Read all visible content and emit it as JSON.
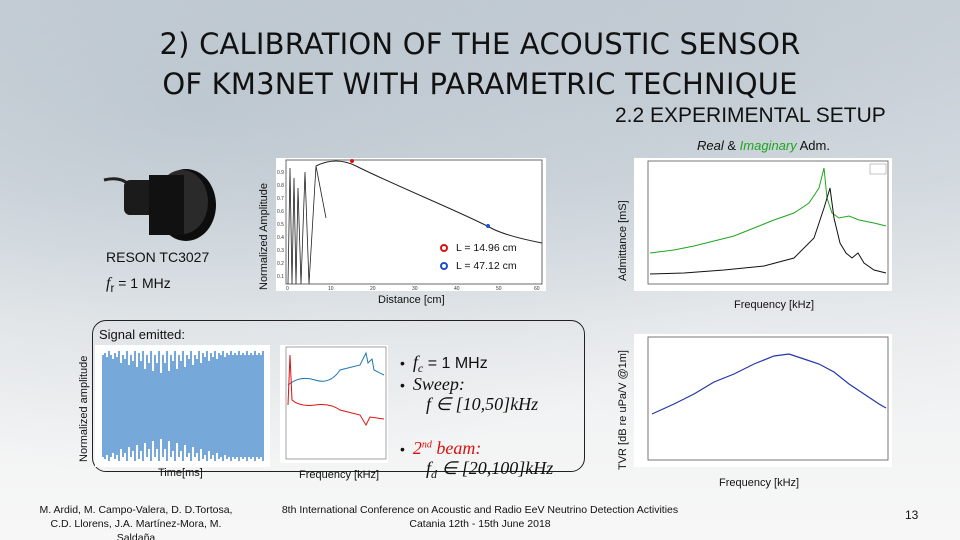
{
  "title": {
    "line1": "2) CALIBRATION OF THE ACOUSTIC SENSOR",
    "line2": "OF KM3NET WITH PARAMETRIC TECHNIQUE",
    "subtitle": "2.2 EXPERIMENTAL SETUP"
  },
  "sensor": {
    "name": "RESON TC3027",
    "freq_symbol": "f",
    "freq_sub": "r",
    "freq_value": " = 1 MHz"
  },
  "amplitude_plot": {
    "ylabel": "Normalized Amplitude",
    "xlabel": "Distance [cm]",
    "legend_L1": "L  = 14.96 cm",
    "legend_L1_sub": "I",
    "legend_LR": "L  = 47.12 cm",
    "legend_LR_sub": "R",
    "yticks": [
      "0.9",
      "0.8",
      "0.7",
      "0.6",
      "0.5",
      "0.4",
      "0.3",
      "0.2",
      "0.1"
    ],
    "xticks": [
      "0",
      "10",
      "20",
      "30",
      "40",
      "50",
      "60"
    ]
  },
  "admittance_plot": {
    "caption_real": "Real",
    "caption_amp": " & ",
    "caption_imag": "Imaginary",
    "caption_adm": " Adm.",
    "ylabel": "Admittance [mS]",
    "xlabel": "Frequency [kHz]"
  },
  "signal": {
    "label": "Signal emitted:",
    "ylabel": "Normalized amplitude",
    "xlabel": "Time[ms]",
    "mid_xlabel": "Frequency [kHz]"
  },
  "bullets": {
    "fc_symbol": "f",
    "fc_sub": "c",
    "fc_value": " = 1 MHz",
    "sweep": "Sweep:",
    "sweep_expr": "f ∈ [10,50]kHz",
    "beam_pre": "2",
    "beam_sup": "nd",
    "beam_post": " beam:",
    "beam_expr": "f",
    "beam_sub": "d",
    "beam_rest": " ∈ [20,100]kHz"
  },
  "tvr_plot": {
    "ylabel": "TVR [dB re uPa/V @1m]",
    "xlabel": "Frequency [kHz]"
  },
  "footer": {
    "authors_line1": "M. Ardid, M. Campo-Valera, D. D.Tortosa,",
    "authors_line2": "C.D. Llorens, J.A. Martínez-Mora, M. Saldaña",
    "conf_line1": "8th International Conference on Acoustic and Radio EeV Neutrino Detection Activities",
    "conf_line2": "Catania 12th - 15th June 2018",
    "page": "13"
  },
  "colors": {
    "green": "#1da61d",
    "red": "#d11",
    "blue": "#1f77b4",
    "signal_blue": "#1a6fc0"
  }
}
